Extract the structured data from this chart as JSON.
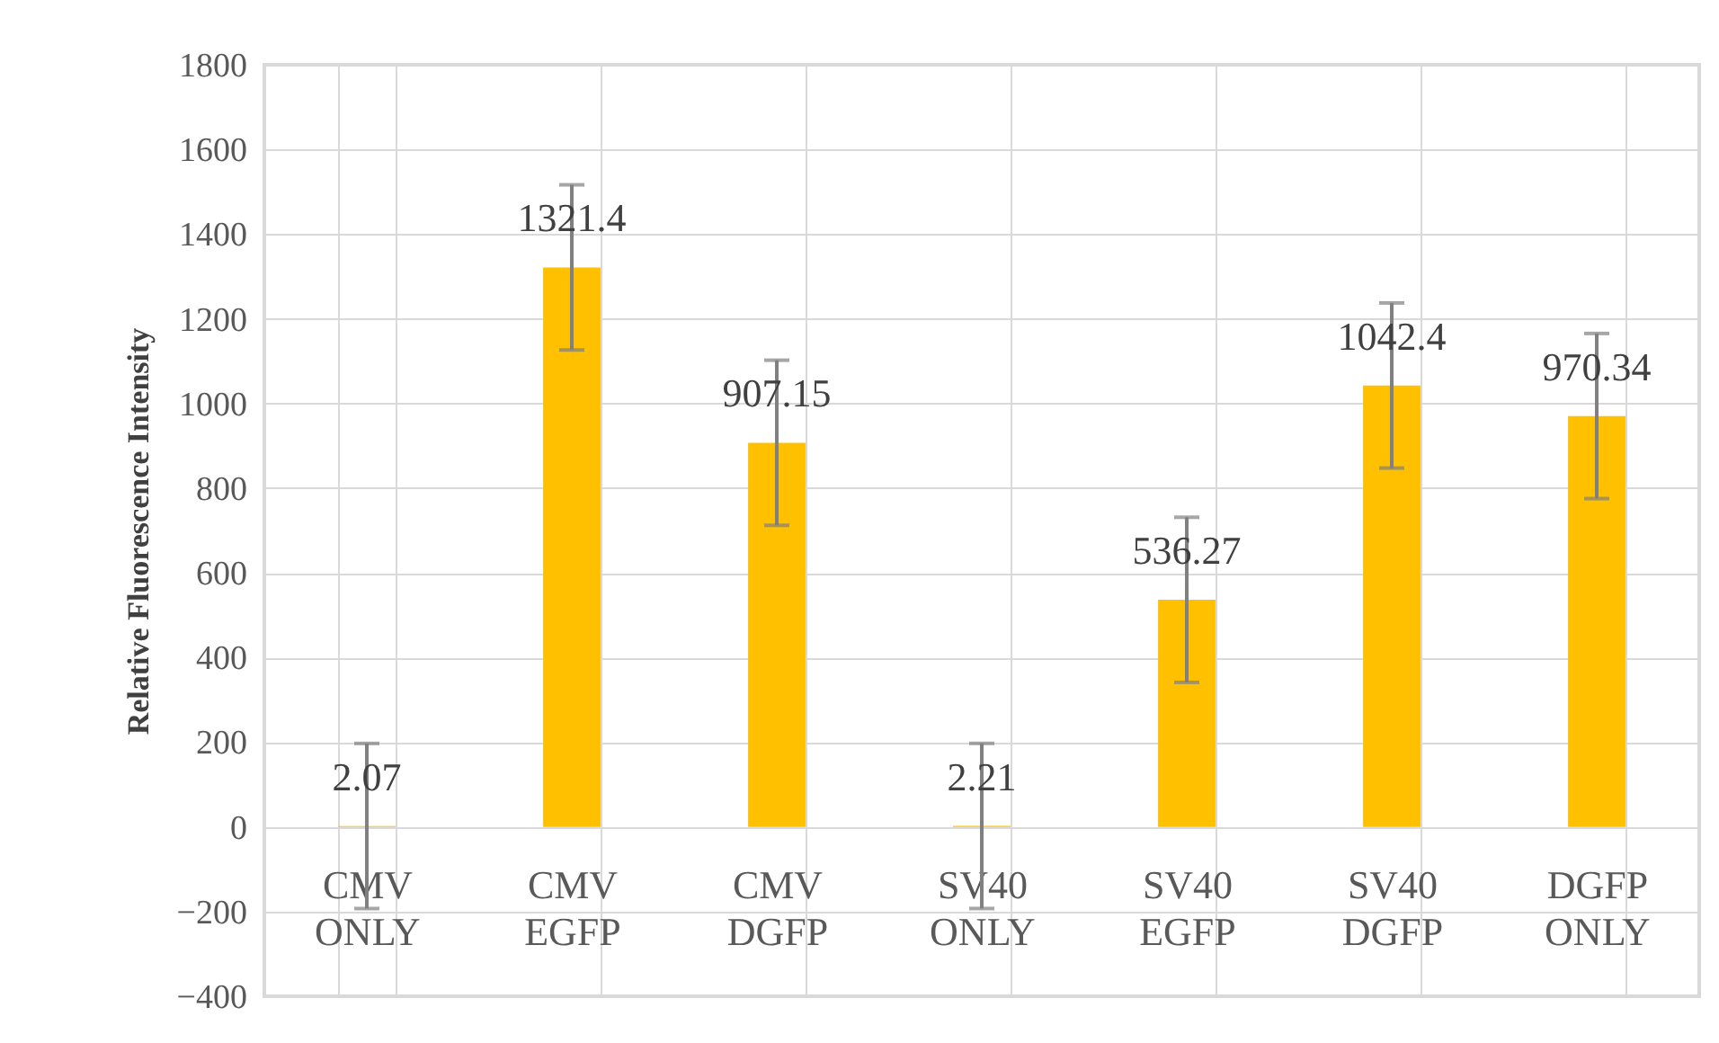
{
  "chart_data": {
    "type": "bar",
    "ylabel": "Relative Fluorescence Intensity",
    "categories": [
      "CMV ONLY",
      "CMV EGFP",
      "CMV DGFP",
      "SV40 ONLY",
      "SV40 EGFP",
      "SV40 DGFP",
      "DGFP ONLY"
    ],
    "values": [
      2.07,
      1321.4,
      907.15,
      2.21,
      536.27,
      1042.4,
      970.34
    ],
    "errors": [
      195,
      195,
      195,
      195,
      195,
      195,
      195
    ],
    "color": "#ffc000",
    "ylim": [
      -400,
      1800
    ],
    "yticks": [
      -400,
      -200,
      0,
      200,
      400,
      600,
      800,
      1000,
      1200,
      1400,
      1600,
      1800
    ],
    "grid": true,
    "data_labels": true
  }
}
